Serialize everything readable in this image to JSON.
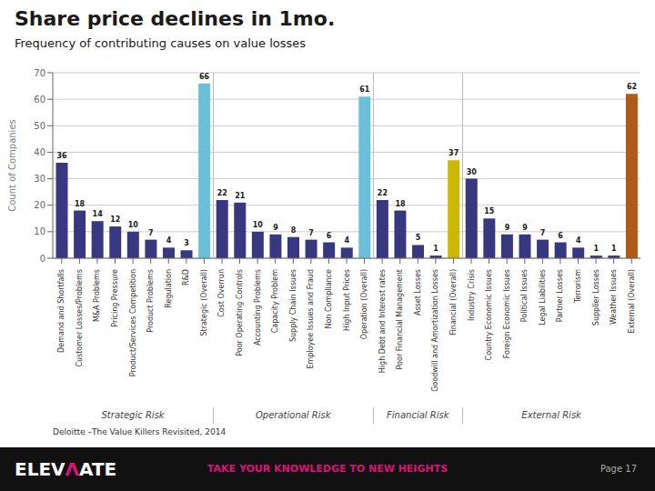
{
  "chart_data": {
    "type": "bar",
    "title": "Share price declines in 1mo.",
    "subtitle": "Frequency of contributing causes on value losses",
    "ylabel": "Count of Companies",
    "categories": [
      "Demand and Shortfalls",
      "Customer Losses/Problems",
      "M&A Problems",
      "Pricing Pressure",
      "Product/Services Competition",
      "Product Problems",
      "Regulation",
      "R&D",
      "Strategic (Overall)",
      "Cost Overrun",
      "Poor Operating Controls",
      "Accounting Problems",
      "Capacity Problem",
      "Supply Chain Issues",
      "Employee Issues and Fraud",
      "Non Compliance",
      "High Input Prices",
      "Operation (Overall)",
      "High Debt and Interest rates",
      "Poor Financial Management",
      "Asset Losses",
      "Goodwill and Amortization Losses",
      "Financial (Overall)",
      "Industry Crisis",
      "Country Economic Issues",
      "Foreign Economic Issues",
      "Political Issues",
      "Legal Liabilities",
      "Partner Losses",
      "Terrorism",
      "Supplier Losses",
      "Weather Issues",
      "External (Overall)"
    ],
    "values": [
      36,
      18,
      14,
      12,
      10,
      7,
      4,
      3,
      66,
      22,
      21,
      10,
      9,
      8,
      7,
      6,
      4,
      61,
      22,
      18,
      5,
      1,
      37,
      30,
      15,
      9,
      9,
      7,
      6,
      4,
      1,
      1,
      62
    ],
    "colors": [
      "#383880",
      "#383880",
      "#383880",
      "#383880",
      "#383880",
      "#383880",
      "#383880",
      "#383880",
      "#6bbfd8",
      "#383880",
      "#383880",
      "#383880",
      "#383880",
      "#383880",
      "#383880",
      "#383880",
      "#383880",
      "#6bbfd8",
      "#383880",
      "#383880",
      "#383880",
      "#383880",
      "#ccb800",
      "#383880",
      "#383880",
      "#383880",
      "#383880",
      "#383880",
      "#383880",
      "#383880",
      "#383880",
      "#383880",
      "#b05a18"
    ],
    "ylim": [
      0,
      70
    ],
    "yticks": [
      0,
      10,
      20,
      30,
      40,
      50,
      60,
      70
    ],
    "grid": true,
    "data_labels": true,
    "groups": [
      {
        "label": "Strategic Risk",
        "first": "Demand and Shortfalls",
        "last": "Strategic (Overall)"
      },
      {
        "label": "Operational Risk",
        "first": "Cost Overrun",
        "last": "Operation (Overall)"
      },
      {
        "label": "Financial Risk",
        "first": "High Debt and Interest rates",
        "last": "Financial (Overall)"
      },
      {
        "label": "External Risk",
        "first": "Industry Crisis",
        "last": "External (Overall)"
      }
    ],
    "annotations": {
      "source": "Deloitte –The Value Killers Revisited, 2014",
      "logo": [
        "ELEV",
        "Λ",
        "ATE"
      ],
      "tagline": "TAKE YOUR KNOWLEDGE TO NEW HEIGHTS",
      "page": "Page 17"
    }
  }
}
